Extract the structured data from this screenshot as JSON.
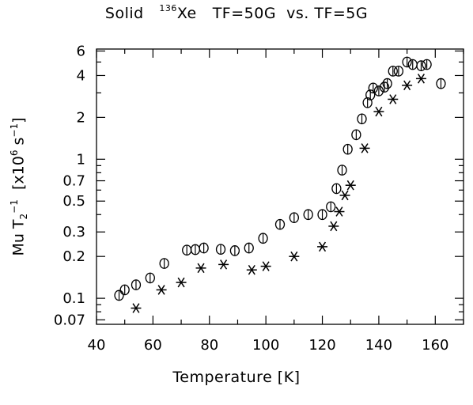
{
  "chart_data": {
    "type": "scatter",
    "title_parts": {
      "prefix": "Solid",
      "isotope_mass": "136",
      "element": "Xe",
      "comparison": "TF=50G  vs. TF=5G"
    },
    "xlabel": "Temperature [K]",
    "ylabel_parts": {
      "mu": "Mu",
      "T": "T",
      "sub": "2",
      "sup": "−1",
      "bracket_open": "[x10",
      "exp": "6",
      "unit": "s",
      "unit_exp": "−1",
      "bracket_close": "]"
    },
    "xlim": [
      40,
      170
    ],
    "ylim": [
      0.065,
      6.2
    ],
    "yscale": "log",
    "grid": false,
    "xticks": [
      40,
      60,
      80,
      100,
      120,
      140,
      160
    ],
    "yticks": [
      0.07,
      0.1,
      0.2,
      0.3,
      0.5,
      0.7,
      1,
      2,
      4,
      6
    ],
    "ytick_labels": [
      "0.07",
      "0.1",
      "0.2",
      "0.3",
      "0.5",
      "0.7",
      "1",
      "2",
      "4",
      "6"
    ],
    "series": [
      {
        "marker": "circle-bar",
        "x": [
          48,
          50,
          54,
          59,
          64,
          72,
          75,
          78,
          84,
          89,
          94,
          99,
          105,
          110,
          115,
          120,
          123,
          125,
          127,
          129,
          132,
          134,
          136,
          137,
          138,
          140,
          142,
          143,
          145,
          147,
          150,
          152,
          155,
          157,
          162
        ],
        "y": [
          0.105,
          0.115,
          0.125,
          0.14,
          0.178,
          0.222,
          0.224,
          0.23,
          0.225,
          0.22,
          0.23,
          0.27,
          0.34,
          0.38,
          0.4,
          0.4,
          0.455,
          0.615,
          0.835,
          1.18,
          1.5,
          1.95,
          2.55,
          2.9,
          3.25,
          3.1,
          3.3,
          3.5,
          4.3,
          4.3,
          5.0,
          4.8,
          4.7,
          4.8,
          3.5
        ]
      },
      {
        "marker": "asterisk",
        "x": [
          54,
          63,
          70,
          77,
          85,
          95,
          100,
          110,
          120,
          124,
          126,
          128,
          130,
          135,
          140,
          145,
          150,
          155
        ],
        "y": [
          0.085,
          0.115,
          0.13,
          0.165,
          0.175,
          0.16,
          0.17,
          0.2,
          0.235,
          0.33,
          0.42,
          0.55,
          0.65,
          1.2,
          2.2,
          2.7,
          3.4,
          3.8
        ]
      }
    ]
  }
}
